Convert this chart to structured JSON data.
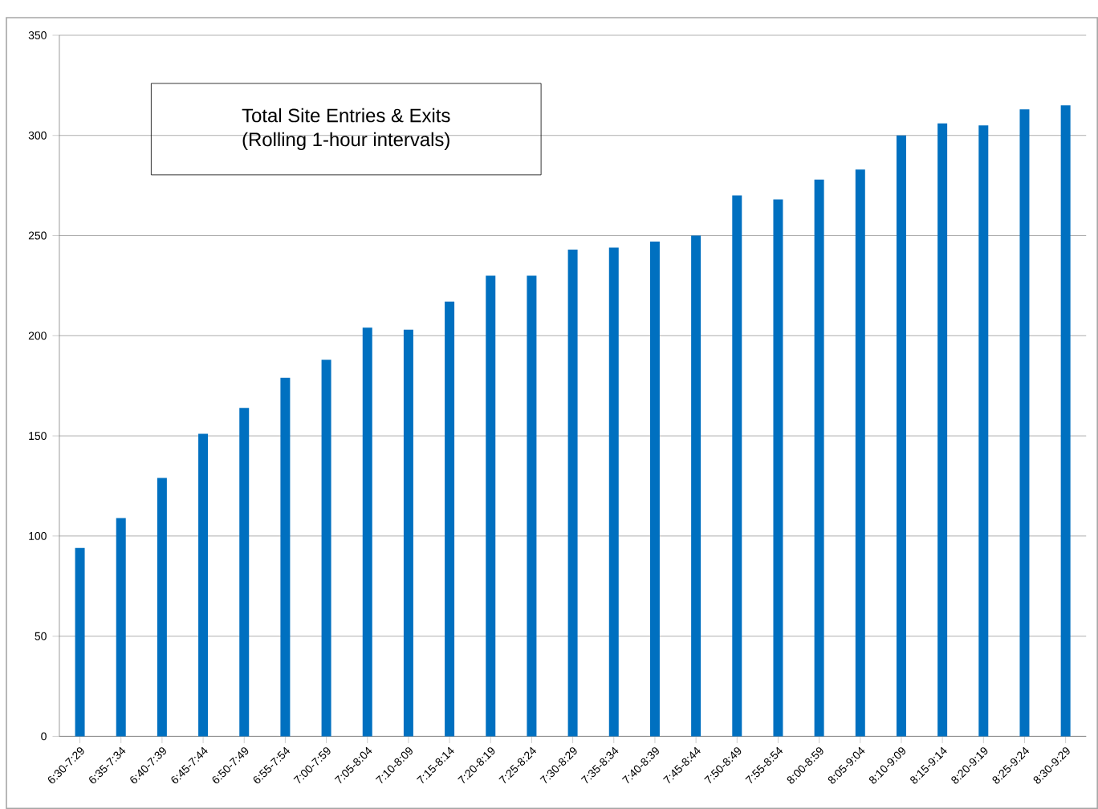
{
  "chart_data": {
    "type": "bar",
    "title": "Total Site Entries & Exits",
    "subtitle": "(Rolling 1-hour intervals)",
    "categories": [
      "6:30-7:29",
      "6:35-7:34",
      "6:40-7:39",
      "6:45-7:44",
      "6:50-7:49",
      "6:55-7:54",
      "7:00-7:59",
      "7:05-8:04",
      "7:10-8:09",
      "7:15-8:14",
      "7:20-8:19",
      "7:25-8:24",
      "7:30-8:29",
      "7:35-8:34",
      "7:40-8:39",
      "7:45-8:44",
      "7:50-8:49",
      "7:55-8:54",
      "8:00-8:59",
      "8:05-9:04",
      "8:10-9:09",
      "8:15-9:14",
      "8:20-9:19",
      "8:25-9:24",
      "8:30-9:29"
    ],
    "values": [
      94,
      109,
      129,
      151,
      164,
      179,
      188,
      204,
      203,
      217,
      230,
      230,
      243,
      244,
      247,
      250,
      270,
      268,
      278,
      283,
      300,
      306,
      305,
      313,
      315
    ],
    "color": "#0070c0",
    "ylim": [
      0,
      350
    ],
    "yticks": [
      0,
      50,
      100,
      150,
      200,
      250,
      300,
      350
    ],
    "grid": "y"
  }
}
